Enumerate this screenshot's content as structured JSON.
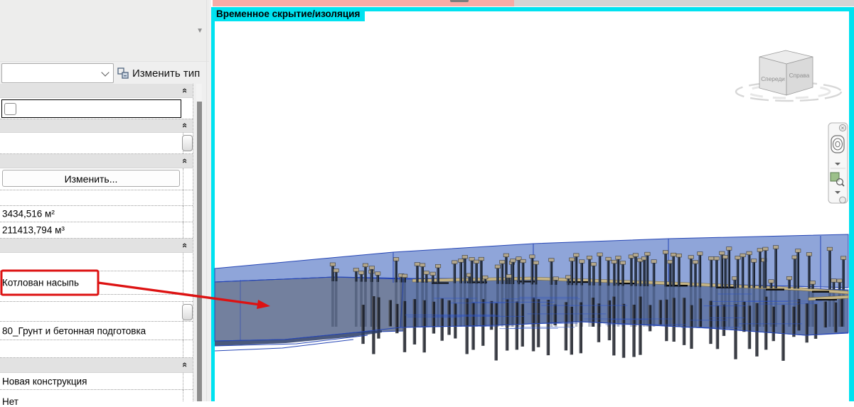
{
  "sidebar": {
    "edit_type_label": "Изменить тип",
    "edit_button_label": "Изменить...",
    "values": {
      "area": "3434,516 м²",
      "volume": "211413,794 м³",
      "excavation": "Котлован насыпь",
      "material": "80_Грунт и бетонная подготовка",
      "phase": "Новая конструкция",
      "demolished": "Нет"
    }
  },
  "viewport": {
    "banner": "Временное скрытие/изоляция",
    "viewcube": {
      "front_label": "Спереди",
      "right_label": "Справа"
    }
  },
  "colors": {
    "isolate_cyan": "#00e2f0",
    "strip_pink": "#f6aba6",
    "strip_gray": "#d4d4d4",
    "annotation_red": "#dd1212",
    "model_top": "#8fa5d9",
    "model_front": "#73809e",
    "model_interior": "#5d73a6",
    "model_edge": "#2545b5",
    "pile_dark": "#1b2433",
    "pile_cap": "#b3a78c",
    "road_tan": "#c6b586"
  },
  "scene": {
    "seed_above": 7,
    "seed_below": 99,
    "seed_streaks": 5,
    "pile_clusters": 26,
    "piles_below": 58,
    "streaks": 30
  }
}
